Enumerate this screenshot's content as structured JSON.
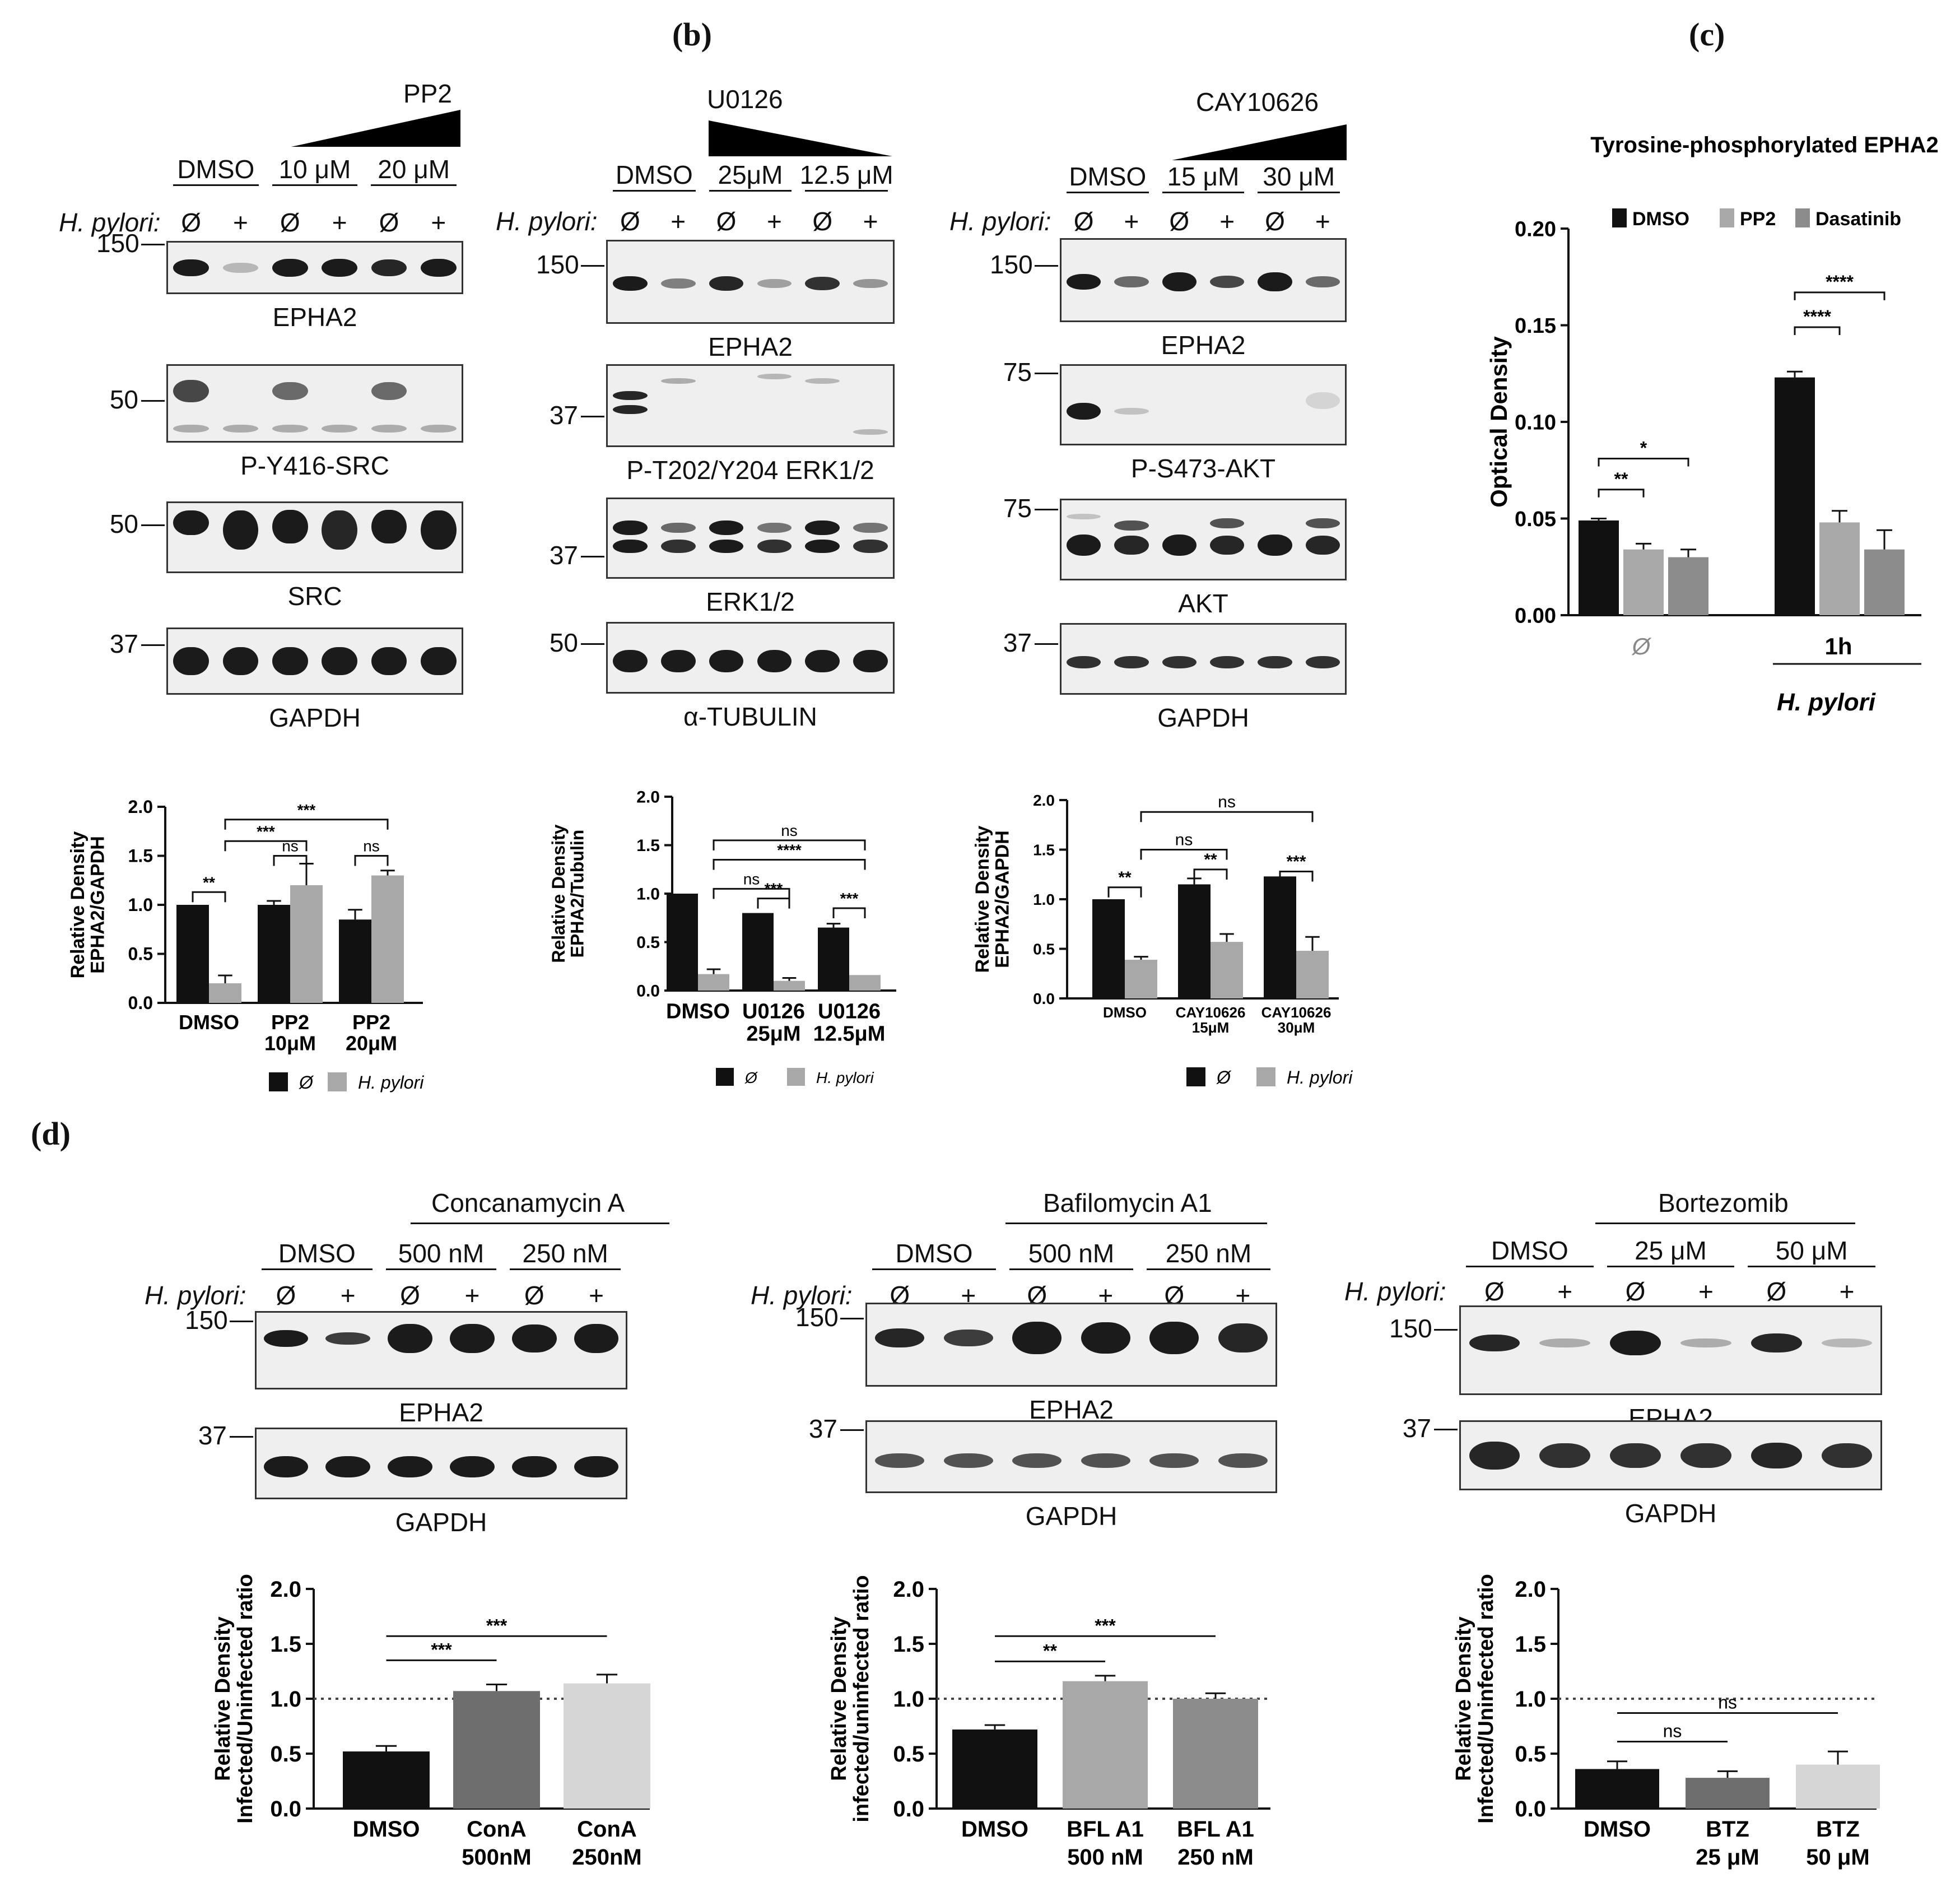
{
  "labels": {
    "b": "(b)",
    "c": "(c)",
    "d": "(d)"
  },
  "hpylori_prefix": "H. pylori:",
  "sym": {
    "none": "Ø",
    "plus": "+"
  },
  "panel_a": {
    "treatment": "PP2",
    "groups": [
      "DMSO",
      "10 μM",
      "20 μM"
    ],
    "markers": [
      "150",
      "50",
      "50",
      "37"
    ],
    "blots": [
      "EPHA2",
      "P-Y416-SRC",
      "SRC",
      "GAPDH"
    ]
  },
  "panel_b": {
    "treatment": "U0126",
    "groups": [
      "DMSO",
      "25μM",
      "12.5 μM"
    ],
    "markers": [
      "150",
      "37",
      "37",
      "50"
    ],
    "blots": [
      "EPHA2",
      "P-T202/Y204  ERK1/2",
      "ERK1/2",
      "α-TUBULIN"
    ]
  },
  "panel_b2": {
    "treatment": "CAY10626",
    "groups": [
      "DMSO",
      "15 μM",
      "30 μM"
    ],
    "markers": [
      "150",
      "75",
      "75",
      "37"
    ],
    "blots": [
      "EPHA2",
      "P-S473-AKT",
      "AKT",
      "GAPDH"
    ]
  },
  "panel_d": {
    "conA": {
      "treatment": "Concanamycin A",
      "groups": [
        "DMSO",
        "500 nM",
        "250 nM"
      ]
    },
    "bfl": {
      "treatment": "Bafilomycin A1",
      "groups": [
        "DMSO",
        "500 nM",
        "250 nM"
      ]
    },
    "btz": {
      "treatment": "Bortezomib",
      "groups": [
        "DMSO",
        "25 μM",
        "50 μM"
      ]
    },
    "markers": [
      "150",
      "37"
    ],
    "blots": [
      "EPHA2",
      "GAPDH"
    ]
  },
  "colors": {
    "black": "#111111",
    "gray": "#a8a8a8",
    "dark_gray": "#6e6e6e",
    "light_gray": "#d6d6d6",
    "mid_gray": "#8c8c8c"
  },
  "chart_data": [
    {
      "id": "a",
      "type": "bar",
      "ylabel": "Relative Density EPHA2/GAPDH",
      "categories": [
        "DMSO",
        "PP2 10μM",
        "PP2 20μM"
      ],
      "ylim": [
        0,
        2.0
      ],
      "yticks": [
        "0.0",
        "0.5",
        "1.0",
        "1.5",
        "2.0"
      ],
      "series": [
        {
          "name": "Ø",
          "values": [
            1.0,
            1.0,
            0.85
          ],
          "errors": [
            0.0,
            0.04,
            0.1
          ]
        },
        {
          "name": "H. pylori",
          "values": [
            0.2,
            1.2,
            1.3
          ],
          "errors": [
            0.08,
            0.22,
            0.05
          ]
        }
      ],
      "annotations": [
        "**",
        "***",
        "***",
        "ns",
        "ns"
      ]
    },
    {
      "id": "b",
      "type": "bar",
      "ylabel": "Relative Density EPHA2/Tubulin",
      "categories": [
        "DMSO",
        "U0126 25μM",
        "U0126 12.5μM"
      ],
      "ylim": [
        0,
        2.0
      ],
      "yticks": [
        "0.0",
        "0.5",
        "1.0",
        "1.5",
        "2.0"
      ],
      "series": [
        {
          "name": "Ø",
          "values": [
            1.0,
            0.8,
            0.65
          ],
          "errors": [
            0.0,
            0.0,
            0.04
          ]
        },
        {
          "name": "H. pylori",
          "values": [
            0.17,
            0.1,
            0.16
          ],
          "errors": [
            0.05,
            0.03,
            0.0
          ]
        }
      ],
      "annotations": [
        "****",
        "ns",
        "***",
        "ns",
        "***"
      ]
    },
    {
      "id": "b2",
      "type": "bar",
      "ylabel": "Relative Density EPHA2/GAPDH",
      "categories": [
        "DMSO",
        "CAY10626 15μM",
        "CAY10626 30μM"
      ],
      "ylim": [
        0,
        2.0
      ],
      "yticks": [
        "0.0",
        "0.5",
        "1.0",
        "1.5",
        "2.0"
      ],
      "series": [
        {
          "name": "Ø",
          "values": [
            1.0,
            1.15,
            1.23
          ],
          "errors": [
            0.0,
            0.06,
            0.0
          ]
        },
        {
          "name": "H. pylori",
          "values": [
            0.39,
            0.57,
            0.48
          ],
          "errors": [
            0.03,
            0.08,
            0.14
          ]
        }
      ],
      "annotations": [
        "**",
        "ns",
        "**",
        "ns",
        "***"
      ]
    },
    {
      "id": "c",
      "type": "bar",
      "title": "Tyrosine-phosphorylated EPHA2",
      "ylabel": "Optical Density",
      "categories": [
        "Ø",
        "1h"
      ],
      "group_label": "H. pylori",
      "ylim": [
        0,
        0.2
      ],
      "yticks": [
        "0.00",
        "0.05",
        "0.10",
        "0.15",
        "0.20"
      ],
      "series": [
        {
          "name": "DMSO",
          "values": [
            0.049,
            0.123
          ],
          "errors": [
            0.001,
            0.003
          ]
        },
        {
          "name": "PP2",
          "values": [
            0.034,
            0.048
          ],
          "errors": [
            0.003,
            0.006
          ]
        },
        {
          "name": "Dasatinib",
          "values": [
            0.03,
            0.034
          ],
          "errors": [
            0.004,
            0.01
          ]
        }
      ],
      "annotations": [
        "**",
        "*",
        "****",
        "****"
      ]
    },
    {
      "id": "d1",
      "type": "bar",
      "ylabel": "Relative Density Infected/Uninfected ratio",
      "categories": [
        "DMSO",
        "ConA 500nM",
        "ConA 250nM"
      ],
      "ylim": [
        0,
        2.0
      ],
      "yticks": [
        "0.0",
        "0.5",
        "1.0",
        "1.5",
        "2.0"
      ],
      "reference_line": 1.0,
      "values": [
        0.52,
        1.07,
        1.14
      ],
      "errors": [
        0.05,
        0.06,
        0.08
      ],
      "annotations": [
        "***",
        "***"
      ]
    },
    {
      "id": "d2",
      "type": "bar",
      "ylabel": "Relative Density infected/uninfected ratio",
      "categories": [
        "DMSO",
        "BFL A1 500 nM",
        "BFL A1 250 nM"
      ],
      "ylim": [
        0,
        2.0
      ],
      "yticks": [
        "0.0",
        "0.5",
        "1.0",
        "1.5",
        "2.0"
      ],
      "reference_line": 1.0,
      "values": [
        0.72,
        1.16,
        1.0
      ],
      "errors": [
        0.04,
        0.05,
        0.05
      ],
      "annotations": [
        "**",
        "***"
      ]
    },
    {
      "id": "d3",
      "type": "bar",
      "ylabel": "Relative Density Infected/Uninfected ratio",
      "categories": [
        "DMSO",
        "BTZ 25 μM",
        "BTZ 50 μM"
      ],
      "ylim": [
        0,
        2.0
      ],
      "yticks": [
        "0.0",
        "0.5",
        "1.0",
        "1.5",
        "2.0"
      ],
      "reference_line": 1.0,
      "values": [
        0.36,
        0.28,
        0.4
      ],
      "errors": [
        0.07,
        0.06,
        0.12
      ],
      "annotations": [
        "ns",
        "ns"
      ]
    }
  ]
}
